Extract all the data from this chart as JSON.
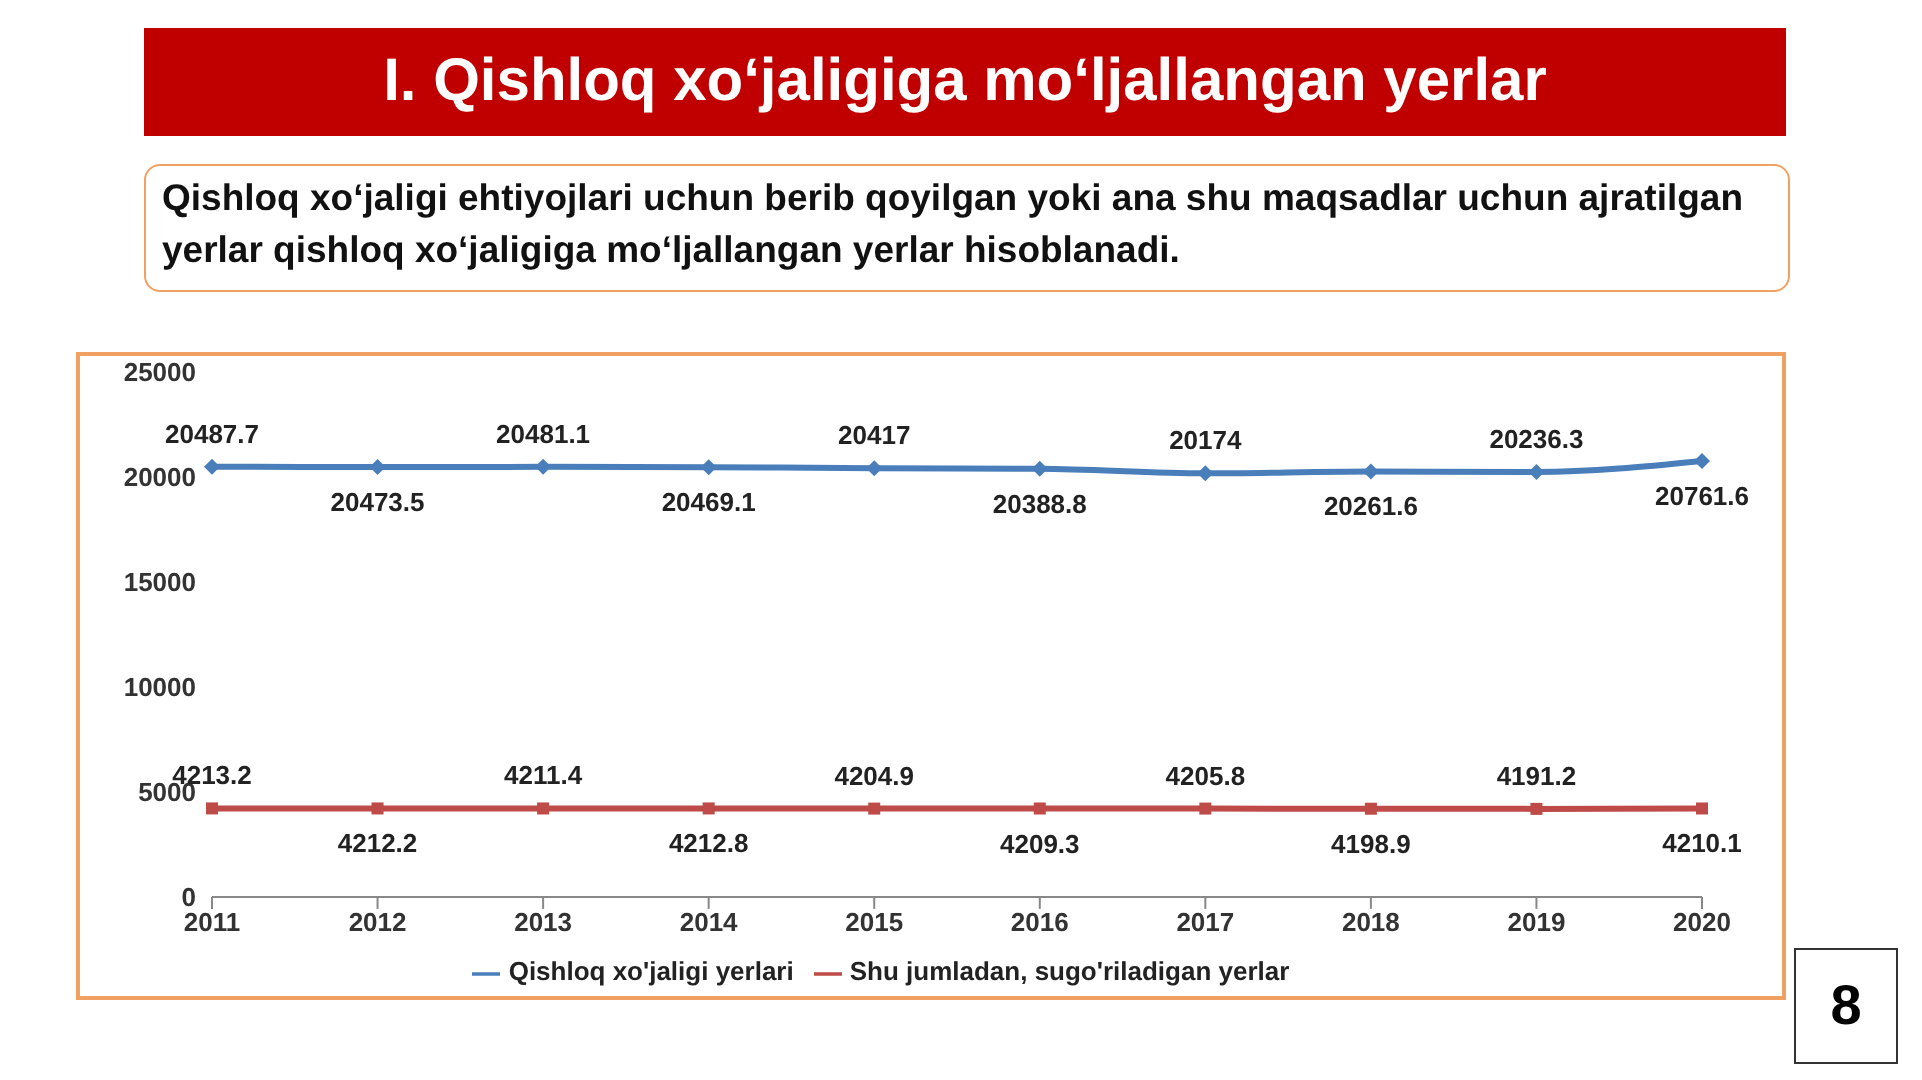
{
  "chart_data": {
    "type": "line",
    "title": "I. Qishloq xoʻjaligiga moʻljallangan yerlar",
    "subtitle": "Qishloq xoʻjaligi ehtiyojlari uchun berib qoyilgan yoki ana shu maqsadlar uchun ajratilgan yerlar qishloq xoʻjaligiga moʻljallangan yerlar hisoblanadi.",
    "categories": [
      "2011",
      "2012",
      "2013",
      "2014",
      "2015",
      "2016",
      "2017",
      "2018",
      "2019",
      "2020"
    ],
    "series": [
      {
        "name": "Qishloq xo'jaligi yerlari",
        "color": "#4a7ebb",
        "marker": "diamond",
        "values": [
          20487.7,
          20473.5,
          20481.1,
          20469.1,
          20417,
          20388.8,
          20174,
          20261.6,
          20236.3,
          20761.6
        ]
      },
      {
        "name": "Shu jumladan, sugo'riladigan yerlar",
        "color": "#be4b48",
        "marker": "square",
        "values": [
          4213.2,
          4212.2,
          4211.4,
          4212.8,
          4204.9,
          4209.3,
          4205.8,
          4198.9,
          4191.2,
          4210.1
        ]
      }
    ],
    "ylim": [
      0,
      25000
    ],
    "yticks": [
      0,
      5000,
      10000,
      15000,
      20000,
      25000
    ],
    "grid": false,
    "legend": "bottom",
    "data_labels": true,
    "line_style": "solid",
    "annotations": [
      "8"
    ]
  }
}
